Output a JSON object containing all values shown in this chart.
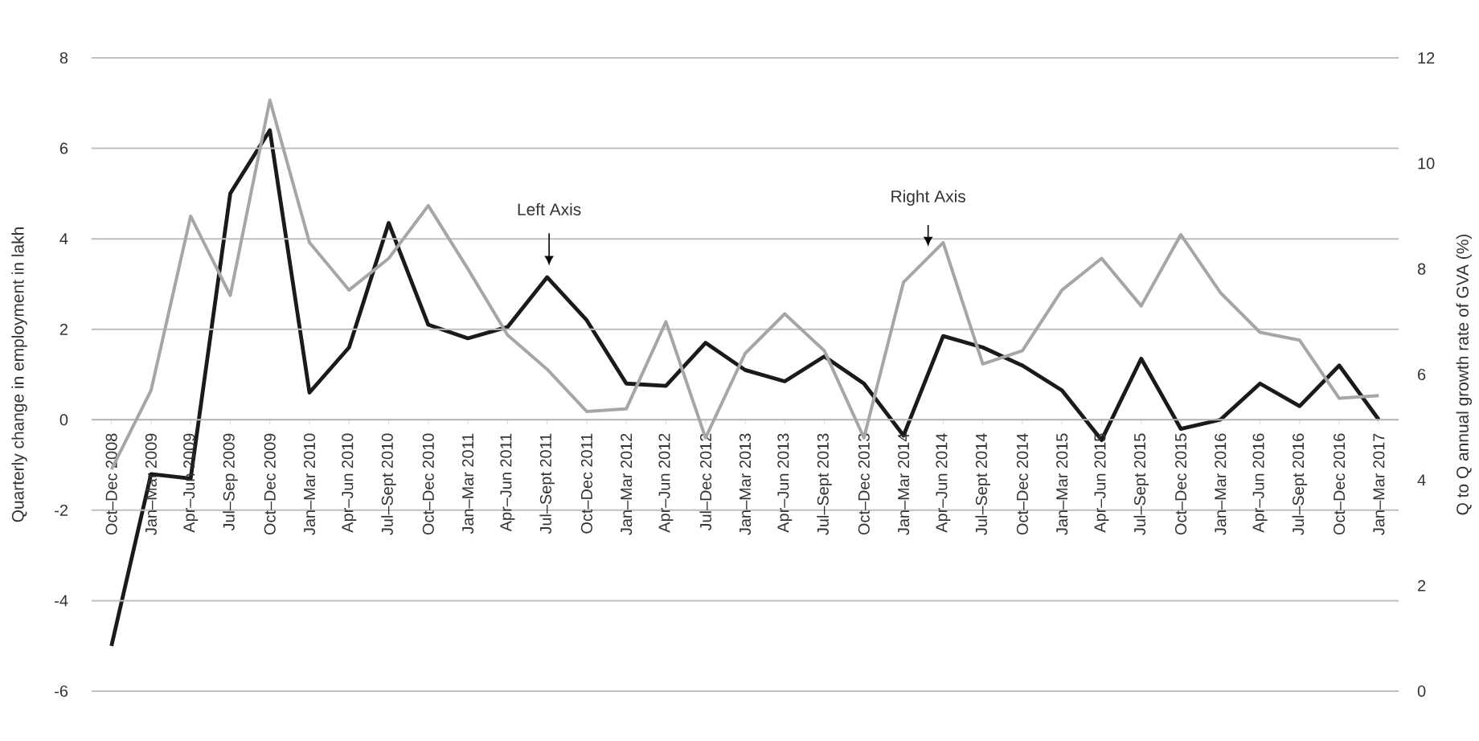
{
  "chart_data": {
    "type": "line",
    "categories": [
      "Oct–Dec 2008",
      "Jan–Mar 2009",
      "Apr–Jun 2009",
      "Jul–Sep 2009",
      "Oct–Dec 2009",
      "Jan–Mar 2010",
      "Apr–Jun 2010",
      "Jul–Sept 2010",
      "Oct–Dec 2010",
      "Jan–Mar 2011",
      "Apr–Jun 2011",
      "Jul–Sept 2011",
      "Oct–Dec 2011",
      "Jan–Mar 2012",
      "Apr–Jun 2012",
      "Jul–Dec 2012",
      "Jan–Mar 2013",
      "Apr–Jun 2013",
      "Jul–Sept 2013",
      "Oct–Dec 2013",
      "Jan–Mar 2014",
      "Apr–Jun 2014",
      "Jul–Sept 2014",
      "Oct–Dec 2014",
      "Jan–Mar 2015",
      "Apr–Jun 2015",
      "Jul–Sept 2015",
      "Oct–Dec 2015",
      "Jan–Mar 2016",
      "Apr–Jun 2016",
      "Jul–Sept 2016",
      "Oct–Dec 2016",
      "Jan–Mar 2017"
    ],
    "series": [
      {
        "color": "#1a1a1a",
        "values": [
          -5.0,
          -1.2,
          -1.3,
          5.0,
          6.4,
          0.6,
          1.6,
          4.35,
          2.1,
          1.8,
          2.05,
          3.15,
          2.2,
          0.8,
          0.75,
          1.7,
          1.1,
          0.85,
          1.4,
          0.8,
          -0.35,
          1.85,
          1.6,
          1.2,
          0.65,
          -0.45,
          1.35,
          -0.2,
          0.0,
          0.8,
          0.3,
          1.2,
          0.0
        ]
      },
      {
        "color": "#a6a6a6",
        "axis": "y2",
        "values": [
          4.2,
          5.7,
          9.0,
          7.5,
          11.2,
          8.5,
          7.6,
          8.2,
          9.2,
          8.0,
          6.75,
          6.1,
          5.3,
          5.35,
          7.0,
          4.8,
          6.4,
          7.15,
          6.45,
          4.8,
          7.75,
          8.5,
          6.2,
          6.45,
          7.6,
          8.2,
          7.3,
          8.65,
          7.55,
          6.8,
          6.65,
          5.55,
          5.6
        ]
      }
    ],
    "ylabel": "Quarterly change in employment in lakh",
    "y2label": "Q to Q annual growth rate of GVA (%)",
    "ylim": [
      -6,
      8
    ],
    "yticks": [
      -6,
      -4,
      -2,
      0,
      2,
      4,
      6,
      8
    ],
    "y2lim": [
      0,
      12
    ],
    "y2ticks": [
      0,
      2,
      4,
      6,
      8,
      10,
      12
    ],
    "grid": "y",
    "annotations": [
      "Left Axis",
      "Right Axis"
    ]
  }
}
